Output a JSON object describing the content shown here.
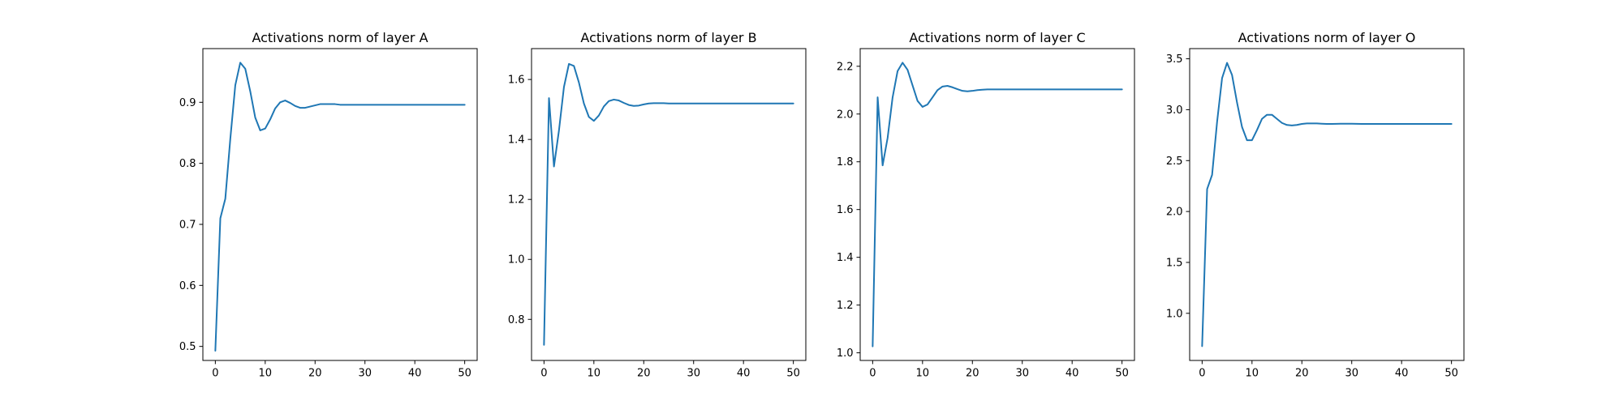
{
  "chart_data": [
    {
      "type": "line",
      "title": "Activations norm of layer A",
      "xlim": [
        -2.5,
        52.5
      ],
      "ylim": [
        0.477,
        0.988
      ],
      "xticks": [
        0,
        10,
        20,
        30,
        40,
        50
      ],
      "yticks": [
        0.5,
        0.6,
        0.7,
        0.8,
        0.9
      ],
      "ytick_labels": [
        "0.5",
        "0.6",
        "0.7",
        "0.8",
        "0.9"
      ],
      "grid": false,
      "color": "#1f77b4",
      "x": [
        0,
        1,
        2,
        3,
        4,
        5,
        6,
        7,
        8,
        9,
        10,
        11,
        12,
        13,
        14,
        15,
        16,
        17,
        18,
        19,
        20,
        21,
        22,
        23,
        24,
        25,
        26,
        27,
        28,
        29,
        30,
        31,
        32,
        33,
        34,
        35,
        36,
        37,
        38,
        39,
        40,
        41,
        42,
        43,
        44,
        45,
        46,
        47,
        48,
        49,
        50
      ],
      "y": [
        0.493,
        0.71,
        0.742,
        0.84,
        0.928,
        0.965,
        0.955,
        0.918,
        0.875,
        0.854,
        0.857,
        0.872,
        0.89,
        0.9,
        0.903,
        0.899,
        0.894,
        0.891,
        0.891,
        0.893,
        0.895,
        0.897,
        0.897,
        0.897,
        0.897,
        0.896,
        0.896,
        0.896,
        0.896,
        0.896,
        0.896,
        0.896,
        0.896,
        0.896,
        0.896,
        0.896,
        0.896,
        0.896,
        0.896,
        0.896,
        0.896,
        0.896,
        0.896,
        0.896,
        0.896,
        0.896,
        0.896,
        0.896,
        0.896,
        0.896,
        0.896
      ]
    },
    {
      "type": "line",
      "title": "Activations norm of layer B",
      "xlim": [
        -2.5,
        52.5
      ],
      "ylim": [
        0.663,
        1.703
      ],
      "xticks": [
        0,
        10,
        20,
        30,
        40,
        50
      ],
      "yticks": [
        0.8,
        1.0,
        1.2,
        1.4,
        1.6
      ],
      "ytick_labels": [
        "0.8",
        "1.0",
        "1.2",
        "1.4",
        "1.6"
      ],
      "grid": false,
      "color": "#1f77b4",
      "x": [
        0,
        1,
        2,
        3,
        4,
        5,
        6,
        7,
        8,
        9,
        10,
        11,
        12,
        13,
        14,
        15,
        16,
        17,
        18,
        19,
        20,
        21,
        22,
        23,
        24,
        25,
        26,
        27,
        28,
        29,
        30,
        31,
        32,
        33,
        34,
        35,
        36,
        37,
        38,
        39,
        40,
        41,
        42,
        43,
        44,
        45,
        46,
        47,
        48,
        49,
        50
      ],
      "y": [
        0.715,
        1.538,
        1.31,
        1.43,
        1.575,
        1.652,
        1.645,
        1.59,
        1.52,
        1.475,
        1.462,
        1.48,
        1.51,
        1.528,
        1.533,
        1.53,
        1.522,
        1.515,
        1.512,
        1.513,
        1.517,
        1.52,
        1.521,
        1.521,
        1.521,
        1.52,
        1.52,
        1.52,
        1.52,
        1.52,
        1.52,
        1.52,
        1.52,
        1.52,
        1.52,
        1.52,
        1.52,
        1.52,
        1.52,
        1.52,
        1.52,
        1.52,
        1.52,
        1.52,
        1.52,
        1.52,
        1.52,
        1.52,
        1.52,
        1.52,
        1.52
      ]
    },
    {
      "type": "line",
      "title": "Activations norm of layer C",
      "xlim": [
        -2.5,
        52.5
      ],
      "ylim": [
        0.968,
        2.274
      ],
      "xticks": [
        0,
        10,
        20,
        30,
        40,
        50
      ],
      "yticks": [
        1.0,
        1.2,
        1.4,
        1.6,
        1.8,
        2.0,
        2.2
      ],
      "ytick_labels": [
        "1.0",
        "1.2",
        "1.4",
        "1.6",
        "1.8",
        "2.0",
        "2.2"
      ],
      "grid": false,
      "color": "#1f77b4",
      "x": [
        0,
        1,
        2,
        3,
        4,
        5,
        6,
        7,
        8,
        9,
        10,
        11,
        12,
        13,
        14,
        15,
        16,
        17,
        18,
        19,
        20,
        21,
        22,
        23,
        24,
        25,
        26,
        27,
        28,
        29,
        30,
        31,
        32,
        33,
        34,
        35,
        36,
        37,
        38,
        39,
        40,
        41,
        42,
        43,
        44,
        45,
        46,
        47,
        48,
        49,
        50
      ],
      "y": [
        1.027,
        2.07,
        1.785,
        1.9,
        2.07,
        2.18,
        2.215,
        2.185,
        2.12,
        2.055,
        2.03,
        2.04,
        2.07,
        2.1,
        2.115,
        2.118,
        2.112,
        2.104,
        2.097,
        2.095,
        2.097,
        2.1,
        2.102,
        2.103,
        2.103,
        2.103,
        2.103,
        2.103,
        2.103,
        2.103,
        2.103,
        2.103,
        2.103,
        2.103,
        2.103,
        2.103,
        2.103,
        2.103,
        2.103,
        2.103,
        2.103,
        2.103,
        2.103,
        2.103,
        2.103,
        2.103,
        2.103,
        2.103,
        2.103,
        2.103,
        2.103
      ]
    },
    {
      "type": "line",
      "title": "Activations norm of layer O",
      "xlim": [
        -2.5,
        52.5
      ],
      "ylim": [
        0.537,
        3.6
      ],
      "xticks": [
        0,
        10,
        20,
        30,
        40,
        50
      ],
      "yticks": [
        1.0,
        1.5,
        2.0,
        2.5,
        3.0,
        3.5
      ],
      "ytick_labels": [
        "1.0",
        "1.5",
        "2.0",
        "2.5",
        "3.0",
        "3.5"
      ],
      "grid": false,
      "color": "#1f77b4",
      "x": [
        0,
        1,
        2,
        3,
        4,
        5,
        6,
        7,
        8,
        9,
        10,
        11,
        12,
        13,
        14,
        15,
        16,
        17,
        18,
        19,
        20,
        21,
        22,
        23,
        24,
        25,
        26,
        27,
        28,
        29,
        30,
        31,
        32,
        33,
        34,
        35,
        36,
        37,
        38,
        39,
        40,
        41,
        42,
        43,
        44,
        45,
        46,
        47,
        48,
        49,
        50
      ],
      "y": [
        0.677,
        2.22,
        2.36,
        2.88,
        3.31,
        3.46,
        3.34,
        3.07,
        2.83,
        2.7,
        2.7,
        2.8,
        2.91,
        2.95,
        2.95,
        2.91,
        2.87,
        2.85,
        2.845,
        2.85,
        2.86,
        2.865,
        2.865,
        2.865,
        2.862,
        2.86,
        2.86,
        2.861,
        2.862,
        2.862,
        2.862,
        2.861,
        2.86,
        2.86,
        2.86,
        2.86,
        2.86,
        2.86,
        2.86,
        2.86,
        2.86,
        2.86,
        2.86,
        2.86,
        2.86,
        2.86,
        2.86,
        2.86,
        2.86,
        2.86,
        2.86
      ]
    }
  ]
}
